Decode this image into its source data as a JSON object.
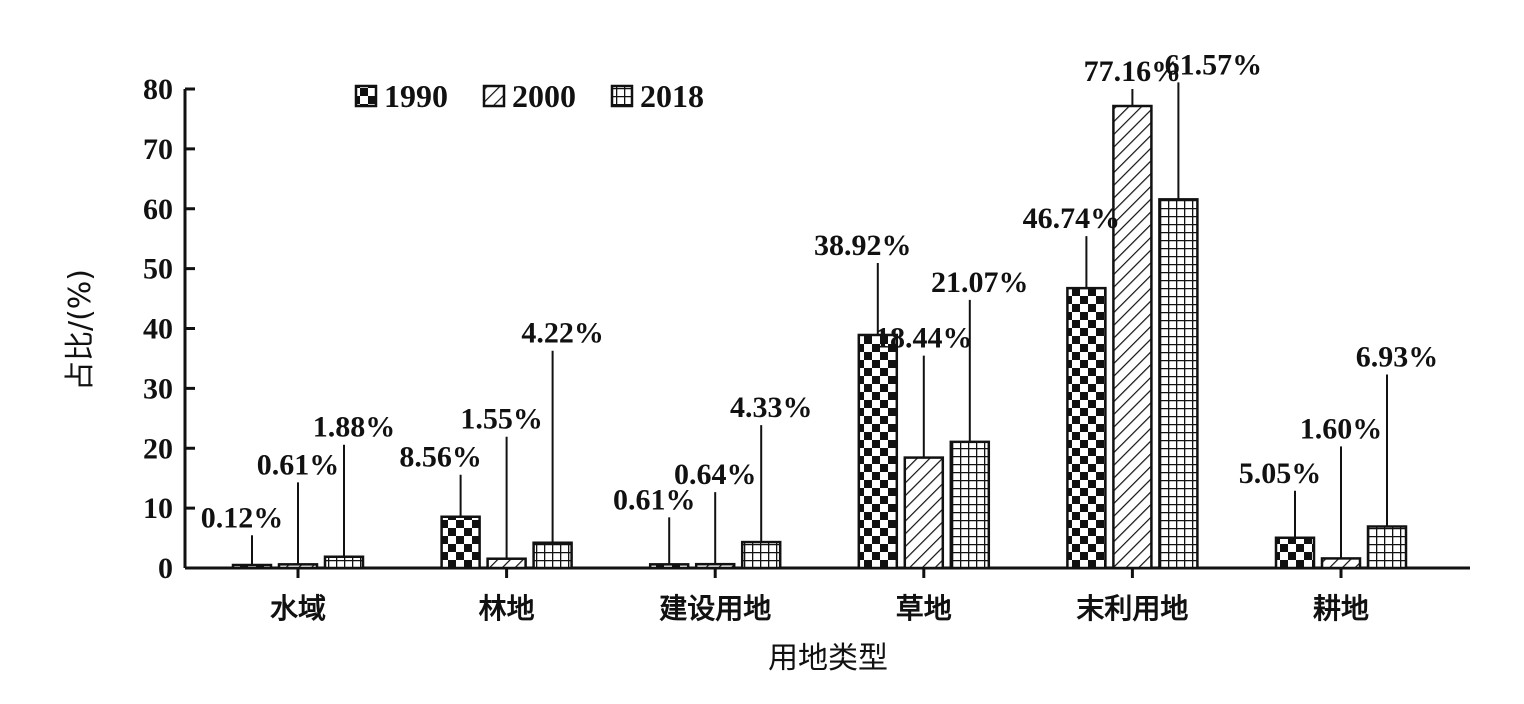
{
  "chart_data": {
    "type": "bar",
    "xlabel": "用地类型",
    "ylabel": "占比/(%)",
    "ylim": [
      0,
      80
    ],
    "yticks": [
      "0",
      "10",
      "20",
      "30",
      "40",
      "50",
      "60",
      "70",
      "80"
    ],
    "grid": false,
    "legend_position": "top-left",
    "categories": [
      "水域",
      "林地",
      "建设用地",
      "草地",
      "末利用地",
      "耕地"
    ],
    "series": [
      {
        "name": "1990",
        "pattern": "checker",
        "values": [
          0.12,
          8.56,
          0.61,
          38.92,
          46.74,
          5.05
        ],
        "labels": [
          "0.12%",
          "8.56%",
          "0.61%",
          "38.92%",
          "46.74%",
          "5.05%"
        ]
      },
      {
        "name": "2000",
        "pattern": "diagonal",
        "values": [
          0.61,
          1.55,
          0.64,
          18.44,
          77.16,
          1.6
        ],
        "labels": [
          "0.61%",
          "1.55%",
          "0.64%",
          "18.44%",
          "77.16%",
          "1.60%"
        ]
      },
      {
        "name": "2018",
        "pattern": "grid",
        "values": [
          1.88,
          4.22,
          4.33,
          21.07,
          61.57,
          6.93
        ],
        "labels": [
          "1.88%",
          "4.22%",
          "4.33%",
          "21.07%",
          "61.57%",
          "6.93%"
        ]
      }
    ],
    "colors": {
      "ink": "#111111",
      "background": "#ffffff"
    }
  }
}
